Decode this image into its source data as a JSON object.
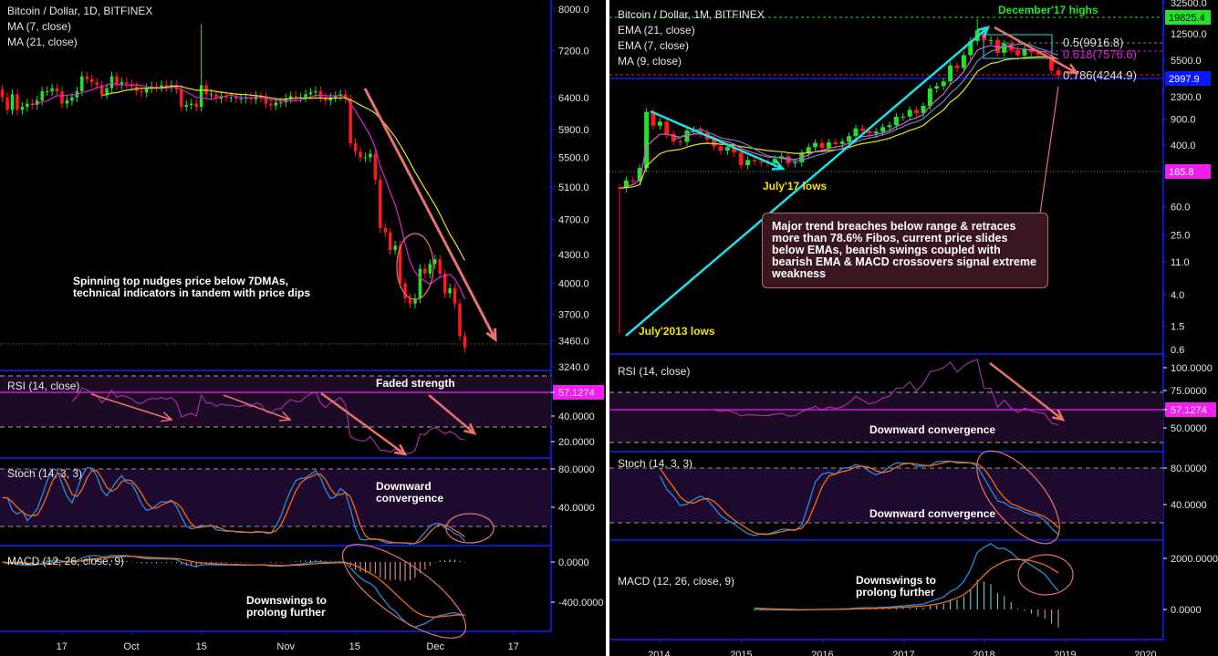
{
  "chart_data": [
    {
      "type": "candlestick",
      "title": "Bitcoin / Dollar, 1D, BITFINEX",
      "interval": "1D",
      "first_bar": "2018-09-05",
      "closes": [
        6400,
        6200,
        6450,
        6200,
        6250,
        6300,
        6280,
        6350,
        6500,
        6500,
        6550,
        6500,
        6300,
        6350,
        6400,
        6500,
        6750,
        6700,
        6650,
        6600,
        6450,
        6550,
        6750,
        6600,
        6650,
        6620,
        6580,
        6500,
        6480,
        6550,
        6580,
        6570,
        6600,
        6570,
        6600,
        6530,
        6250,
        6280,
        6300,
        6250,
        6600,
        6450,
        6450,
        6380,
        6420,
        6400,
        6400,
        6380,
        6380,
        6400,
        6370,
        6420,
        6400,
        6300,
        6270,
        6320,
        6320,
        6380,
        6420,
        6400,
        6400,
        6450,
        6480,
        6500,
        6400,
        6350,
        6400,
        6420,
        6450,
        6380,
        5700,
        5580,
        5500,
        5500,
        5550,
        5200,
        4600,
        4550,
        4350,
        4400,
        4000,
        3850,
        3800,
        3850,
        4150,
        4100,
        4200,
        4250,
        4100,
        3900,
        3950,
        3800,
        3500,
        3400
      ],
      "wick_highs": {
        "2018-10-15": 7700
      },
      "y_scale": "log",
      "yticks": [
        "8000.0",
        "7200.0",
        "6400.0",
        "5900.0",
        "5500.0",
        "5100.0",
        "4700.0",
        "4300.0",
        "4000.0",
        "3700.0",
        "3460.0",
        "3240.0"
      ],
      "xticks": [
        "17",
        "Oct",
        "15",
        "Nov",
        "15",
        "Dec",
        "17"
      ],
      "overlays": [
        "MA (7, close)",
        "MA (21, close)"
      ],
      "overlay_colors": [
        "#e21fe0",
        "#e8e21b"
      ],
      "rsi_legend": "RSI (14, close)",
      "rsi_ticks": [
        "57.1274",
        "40.0000",
        "20.0000"
      ],
      "stoch_legend": "Stoch (14, 3, 3)",
      "stoch_ticks": [
        "80.0000",
        "40.0000"
      ],
      "macd_legend": "MACD (12, 26, close, 9)",
      "macd_ticks": [
        "0.0000",
        "-400.0000"
      ],
      "annotations": {
        "price": "Spinning top nudges price below 7DMAs,\ntechnical indicators in tandem with price dips",
        "rsi": "Faded strength",
        "stoch": "Downward\nconvergence",
        "macd": "Downswings to\nprolong further"
      }
    },
    {
      "type": "candlestick",
      "title": "Bitcoin / Dollar, 1M, BITFINEX",
      "interval": "1M",
      "first_bar": "2013-07",
      "closes": [
        106,
        135,
        133,
        198,
        1120,
        732,
        830,
        570,
        450,
        445,
        630,
        640,
        585,
        480,
        388,
        338,
        378,
        320,
        217,
        254,
        244,
        236,
        230,
        263,
        284,
        230,
        236,
        314,
        377,
        430,
        369,
        437,
        416,
        448,
        531,
        673,
        624,
        575,
        609,
        700,
        742,
        963,
        970,
        1190,
        1080,
        1350,
        2300,
        2480,
        2875,
        4700,
        4340,
        6450,
        9950,
        13850,
        10220,
        10330,
        6930,
        9240,
        7500,
        6390,
        7730,
        7030,
        6630,
        6370,
        4020,
        3500
      ],
      "wick_highs": {
        "2017-12": 19825.4
      },
      "y_scale": "log",
      "yticks": [
        "32500.0",
        "12500.0",
        "5500.0",
        "2300.0",
        "900.0",
        "400.0",
        "60.0",
        "25.0",
        "11.0",
        "4.0",
        "1.5",
        "0.6"
      ],
      "price_labels": [
        {
          "value": "19825.4",
          "color": "#22e32a"
        },
        {
          "value": "2997.9",
          "color": "#0a18ff"
        },
        {
          "value": "165.8",
          "color": "#f01ff0"
        }
      ],
      "xticks": [
        "2014",
        "2015",
        "2016",
        "2017",
        "2018",
        "2019",
        "2020"
      ],
      "overlays": [
        "EMA (21, close)",
        "EMA (7, close)",
        "MA (9, close)"
      ],
      "overlay_colors": [
        "#e8e21b",
        "#e05fd0",
        "#5b8fb9"
      ],
      "fib_levels": [
        {
          "label": "0.5(9916.8)",
          "color": "#dddddd"
        },
        {
          "label": "0.618(7576.6)",
          "color": "#e21fe0"
        },
        {
          "label": "0.786(4244.9)",
          "color": "#dddddd"
        }
      ],
      "rsi_legend": "RSI (14, close)",
      "rsi_ticks": [
        "100.0000",
        "75.0000",
        "57.1274",
        "50.0000"
      ],
      "stoch_legend": "Stoch (14, 3, 3)",
      "stoch_ticks": [
        "80.0000",
        "40.0000"
      ],
      "macd_legend": "MACD (12, 26, close, 9)",
      "macd_ticks": [
        "2000.0000",
        "0.0000"
      ],
      "annotations": {
        "highs": "December'17 highs",
        "july17": "July'17 lows",
        "july13": "July'2013 lows",
        "box": "Major trend breaches below range & retraces more than 78.6% Fibos, current price slides below EMAs, bearish swings coupled with bearish EMA & MACD crossovers signal extreme weakness",
        "rsi": "Downward convergence",
        "stoch": "Downward convergence",
        "macd": "Downswings to\nprolong further"
      }
    }
  ],
  "colors": {
    "up": "#22e32a",
    "down": "#ff1a1a",
    "pane_border": "#1020ff",
    "rsi_line": "#9b2fa6",
    "stoch_k": "#2a8ae0",
    "stoch_d": "#f06a1a",
    "arrow": "#e8726e",
    "trend": "#1de0e8"
  }
}
